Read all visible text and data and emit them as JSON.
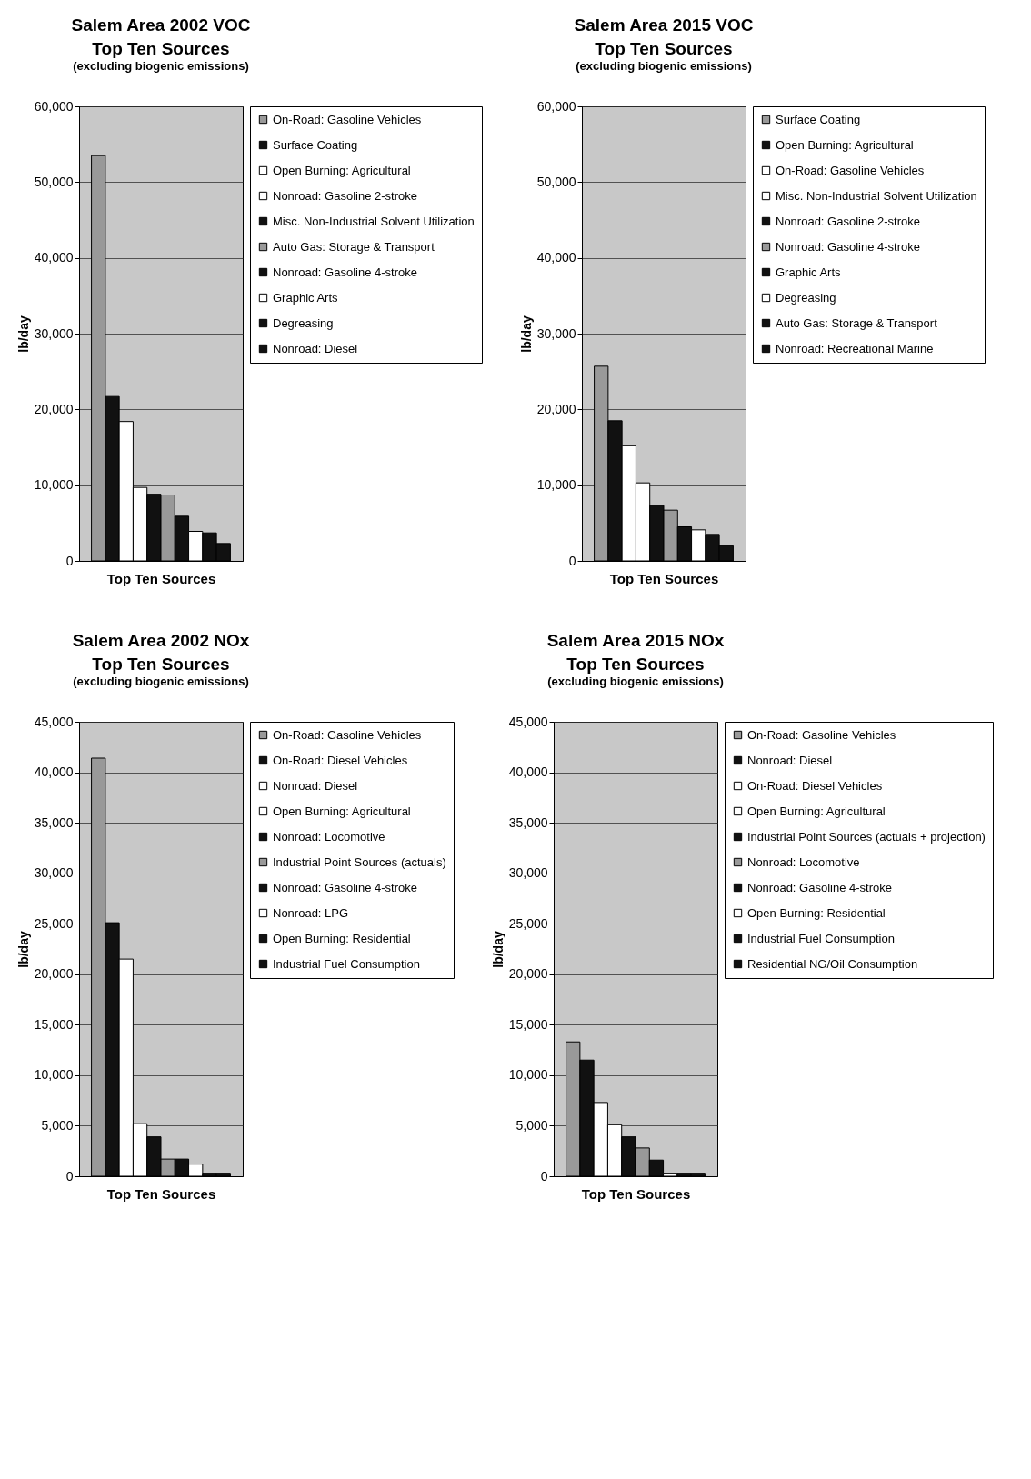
{
  "chart_data": [
    {
      "type": "bar",
      "title": "Salem Area 2002 VOC\nTop Ten Sources",
      "subtitle": "(excluding biogenic emissions)",
      "xlabel": "Top Ten Sources",
      "ylabel": "lb/day",
      "categories": [
        null
      ],
      "ylim": [
        0,
        60000
      ],
      "yticks": [
        {
          "value": 0,
          "label": "0"
        },
        {
          "value": 10000,
          "label": "10,000"
        },
        {
          "value": 20000,
          "label": "20,000"
        },
        {
          "value": 30000,
          "label": "30,000"
        },
        {
          "value": 40000,
          "label": "40,000"
        },
        {
          "value": 50000,
          "label": "50,000"
        },
        {
          "value": 60000,
          "label": "60,000"
        }
      ],
      "grid": "y",
      "legend": "right",
      "tick_labels": "y",
      "series": [
        {
          "name": "On-Road: Gasoline Vehicles",
          "color": "#999999",
          "values": [
            53500
          ]
        },
        {
          "name": "Surface Coating",
          "color": "#111111",
          "values": [
            21700
          ]
        },
        {
          "name": "Open Burning: Agricultural",
          "color": "#ffffff",
          "values": [
            18400
          ]
        },
        {
          "name": "Nonroad: Gasoline 2-stroke",
          "color": "#ffffff",
          "values": [
            9700
          ]
        },
        {
          "name": "Misc. Non-Industrial Solvent Utilization",
          "color": "#111111",
          "values": [
            8800
          ]
        },
        {
          "name": "Auto Gas: Storage & Transport",
          "color": "#999999",
          "values": [
            8700
          ]
        },
        {
          "name": "Nonroad: Gasoline 4-stroke",
          "color": "#111111",
          "values": [
            5900
          ]
        },
        {
          "name": "Graphic Arts",
          "color": "#ffffff",
          "values": [
            3900
          ]
        },
        {
          "name": "Degreasing",
          "color": "#111111",
          "values": [
            3700
          ]
        },
        {
          "name": "Nonroad: Diesel",
          "color": "#111111",
          "values": [
            2300
          ]
        }
      ]
    },
    {
      "type": "bar",
      "title": "Salem Area 2015 VOC\nTop Ten Sources",
      "subtitle": "(excluding biogenic emissions)",
      "xlabel": "Top Ten Sources",
      "ylabel": "lb/day",
      "categories": [
        null
      ],
      "ylim": [
        0,
        60000
      ],
      "yticks": [
        {
          "value": 0,
          "label": "0"
        },
        {
          "value": 10000,
          "label": "10,000"
        },
        {
          "value": 20000,
          "label": "20,000"
        },
        {
          "value": 30000,
          "label": "30,000"
        },
        {
          "value": 40000,
          "label": "40,000"
        },
        {
          "value": 50000,
          "label": "50,000"
        },
        {
          "value": 60000,
          "label": "60,000"
        }
      ],
      "grid": "y",
      "legend": "right",
      "tick_labels": "y",
      "series": [
        {
          "name": "Surface Coating",
          "color": "#999999",
          "values": [
            25700
          ]
        },
        {
          "name": "Open Burning: Agricultural",
          "color": "#111111",
          "values": [
            18500
          ]
        },
        {
          "name": "On-Road: Gasoline Vehicles",
          "color": "#ffffff",
          "values": [
            15200
          ]
        },
        {
          "name": "Misc. Non-Industrial Solvent Utilization",
          "color": "#ffffff",
          "values": [
            10300
          ]
        },
        {
          "name": "Nonroad: Gasoline 2-stroke",
          "color": "#111111",
          "values": [
            7300
          ]
        },
        {
          "name": "Nonroad: Gasoline 4-stroke",
          "color": "#999999",
          "values": [
            6700
          ]
        },
        {
          "name": "Graphic Arts",
          "color": "#111111",
          "values": [
            4500
          ]
        },
        {
          "name": "Degreasing",
          "color": "#ffffff",
          "values": [
            4100
          ]
        },
        {
          "name": "Auto Gas: Storage & Transport",
          "color": "#111111",
          "values": [
            3500
          ]
        },
        {
          "name": "Nonroad: Recreational Marine",
          "color": "#111111",
          "values": [
            2000
          ]
        }
      ]
    },
    {
      "type": "bar",
      "title": "Salem Area 2002 NOx\nTop Ten Sources",
      "subtitle": "(excluding biogenic emissions)",
      "xlabel": "Top Ten Sources",
      "ylabel": "lb/day",
      "categories": [
        null
      ],
      "ylim": [
        0,
        45000
      ],
      "yticks": [
        {
          "value": 0,
          "label": "0"
        },
        {
          "value": 5000,
          "label": "5,000"
        },
        {
          "value": 10000,
          "label": "10,000"
        },
        {
          "value": 15000,
          "label": "15,000"
        },
        {
          "value": 20000,
          "label": "20,000"
        },
        {
          "value": 25000,
          "label": "25,000"
        },
        {
          "value": 30000,
          "label": "30,000"
        },
        {
          "value": 35000,
          "label": "35,000"
        },
        {
          "value": 40000,
          "label": "40,000"
        },
        {
          "value": 45000,
          "label": "45,000"
        }
      ],
      "grid": "y",
      "legend": "right",
      "tick_labels": "y",
      "series": [
        {
          "name": "On-Road: Gasoline Vehicles",
          "color": "#999999",
          "values": [
            41400
          ]
        },
        {
          "name": "On-Road: Diesel Vehicles",
          "color": "#111111",
          "values": [
            25100
          ]
        },
        {
          "name": "Nonroad: Diesel",
          "color": "#ffffff",
          "values": [
            21500
          ]
        },
        {
          "name": "Open Burning: Agricultural",
          "color": "#ffffff",
          "values": [
            5200
          ]
        },
        {
          "name": "Nonroad: Locomotive",
          "color": "#111111",
          "values": [
            3900
          ]
        },
        {
          "name": "Industrial Point Sources (actuals)",
          "color": "#999999",
          "values": [
            1700
          ]
        },
        {
          "name": "Nonroad: Gasoline 4-stroke",
          "color": "#111111",
          "values": [
            1700
          ]
        },
        {
          "name": "Nonroad: LPG",
          "color": "#ffffff",
          "values": [
            1200
          ]
        },
        {
          "name": "Open Burning: Residential",
          "color": "#111111",
          "values": [
            300
          ]
        },
        {
          "name": "Industrial Fuel Consumption",
          "color": "#111111",
          "values": [
            300
          ]
        }
      ]
    },
    {
      "type": "bar",
      "title": "Salem Area 2015 NOx\nTop Ten Sources",
      "subtitle": "(excluding biogenic emissions)",
      "xlabel": "Top Ten Sources",
      "ylabel": "lb/day",
      "categories": [
        null
      ],
      "ylim": [
        0,
        45000
      ],
      "yticks": [
        {
          "value": 0,
          "label": "0"
        },
        {
          "value": 5000,
          "label": "5,000"
        },
        {
          "value": 10000,
          "label": "10,000"
        },
        {
          "value": 15000,
          "label": "15,000"
        },
        {
          "value": 20000,
          "label": "20,000"
        },
        {
          "value": 25000,
          "label": "25,000"
        },
        {
          "value": 30000,
          "label": "30,000"
        },
        {
          "value": 35000,
          "label": "35,000"
        },
        {
          "value": 40000,
          "label": "40,000"
        },
        {
          "value": 45000,
          "label": "45,000"
        }
      ],
      "grid": "y",
      "legend": "right",
      "tick_labels": "y",
      "series": [
        {
          "name": "On-Road: Gasoline Vehicles",
          "color": "#999999",
          "values": [
            13300
          ]
        },
        {
          "name": "Nonroad: Diesel",
          "color": "#111111",
          "values": [
            11500
          ]
        },
        {
          "name": "On-Road: Diesel Vehicles",
          "color": "#ffffff",
          "values": [
            7300
          ]
        },
        {
          "name": "Open Burning: Agricultural",
          "color": "#ffffff",
          "values": [
            5100
          ]
        },
        {
          "name": "Industrial Point Sources (actuals + projection)",
          "color": "#111111",
          "values": [
            3900
          ]
        },
        {
          "name": "Nonroad: Locomotive",
          "color": "#999999",
          "values": [
            2800
          ]
        },
        {
          "name": "Nonroad: Gasoline 4-stroke",
          "color": "#111111",
          "values": [
            1600
          ]
        },
        {
          "name": "Open Burning: Residential",
          "color": "#ffffff",
          "values": [
            300
          ]
        },
        {
          "name": "Industrial Fuel Consumption",
          "color": "#111111",
          "values": [
            300
          ]
        },
        {
          "name": "Residential NG/Oil Consumption",
          "color": "#111111",
          "values": [
            300
          ]
        }
      ]
    }
  ]
}
